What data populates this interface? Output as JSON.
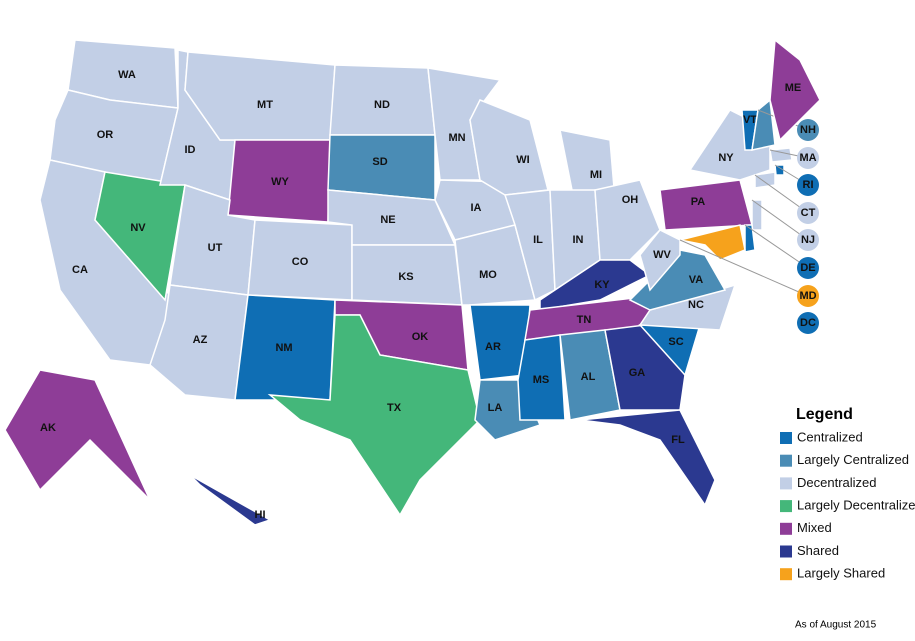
{
  "map": {
    "states": [
      {
        "label": "WA",
        "color": "#c2cfe6"
      },
      {
        "label": "OR",
        "color": "#c2cfe6"
      },
      {
        "label": "CA",
        "color": "#c2cfe6"
      },
      {
        "label": "NV",
        "color": "#44b77a"
      },
      {
        "label": "ID",
        "color": "#c2cfe6"
      },
      {
        "label": "MT",
        "color": "#c2cfe6"
      },
      {
        "label": "WY",
        "color": "#8e3d97"
      },
      {
        "label": "UT",
        "color": "#c2cfe6"
      },
      {
        "label": "CO",
        "color": "#c2cfe6"
      },
      {
        "label": "AZ",
        "color": "#c2cfe6"
      },
      {
        "label": "NM",
        "color": "#0f6eb4"
      },
      {
        "label": "ND",
        "color": "#c2cfe6"
      },
      {
        "label": "SD",
        "color": "#4a8cb5"
      },
      {
        "label": "NE",
        "color": "#c2cfe6"
      },
      {
        "label": "KS",
        "color": "#c2cfe6"
      },
      {
        "label": "OK",
        "color": "#8e3d97"
      },
      {
        "label": "TX",
        "color": "#44b77a"
      },
      {
        "label": "MN",
        "color": "#c2cfe6"
      },
      {
        "label": "IA",
        "color": "#c2cfe6"
      },
      {
        "label": "MO",
        "color": "#c2cfe6"
      },
      {
        "label": "AR",
        "color": "#0f6eb4"
      },
      {
        "label": "LA",
        "color": "#4a8cb5"
      },
      {
        "label": "WI",
        "color": "#c2cfe6"
      },
      {
        "label": "MI",
        "color": "#c2cfe6"
      },
      {
        "label": "IL",
        "color": "#c2cfe6"
      },
      {
        "label": "IN",
        "color": "#c2cfe6"
      },
      {
        "label": "OH",
        "color": "#c2cfe6"
      },
      {
        "label": "KY",
        "color": "#2b3990"
      },
      {
        "label": "TN",
        "color": "#8e3d97"
      },
      {
        "label": "MS",
        "color": "#0f6eb4"
      },
      {
        "label": "AL",
        "color": "#4a8cb5"
      },
      {
        "label": "GA",
        "color": "#2b3990"
      },
      {
        "label": "FL",
        "color": "#2b3990"
      },
      {
        "label": "SC",
        "color": "#0f6eb4"
      },
      {
        "label": "NC",
        "color": "#c2cfe6"
      },
      {
        "label": "VA",
        "color": "#4a8cb5"
      },
      {
        "label": "WV",
        "color": "#c2cfe6"
      },
      {
        "label": "PA",
        "color": "#8e3d97"
      },
      {
        "label": "NY",
        "color": "#c2cfe6"
      },
      {
        "label": "VT",
        "color": "#0f6eb4"
      },
      {
        "label": "NH",
        "color": "#4a8cb5"
      },
      {
        "label": "ME",
        "color": "#8e3d97"
      },
      {
        "label": "MA",
        "color": "#c2cfe6"
      },
      {
        "label": "RI",
        "color": "#0f6eb4"
      },
      {
        "label": "CT",
        "color": "#c2cfe6"
      },
      {
        "label": "NJ",
        "color": "#c2cfe6"
      },
      {
        "label": "DE",
        "color": "#0f6eb4"
      },
      {
        "label": "MD",
        "color": "#f6a21c"
      },
      {
        "label": "DC",
        "color": "#0f6eb4"
      },
      {
        "label": "AK",
        "color": "#8e3d97"
      },
      {
        "label": "HI",
        "color": "#2b3990"
      }
    ],
    "legend": {
      "title": "Legend",
      "items": [
        {
          "label": "Centralized",
          "color": "#0f6eb4"
        },
        {
          "label": "Largely Centralized",
          "color": "#4a8cb5"
        },
        {
          "label": "Decentralized",
          "color": "#c2cfe6"
        },
        {
          "label": "Largely Decentralized",
          "color": "#44b77a"
        },
        {
          "label": "Mixed",
          "color": "#8e3d97"
        },
        {
          "label": "Shared",
          "color": "#2b3990"
        },
        {
          "label": "Largely Shared",
          "color": "#f6a21c"
        }
      ]
    },
    "note": "As of August 2015"
  }
}
